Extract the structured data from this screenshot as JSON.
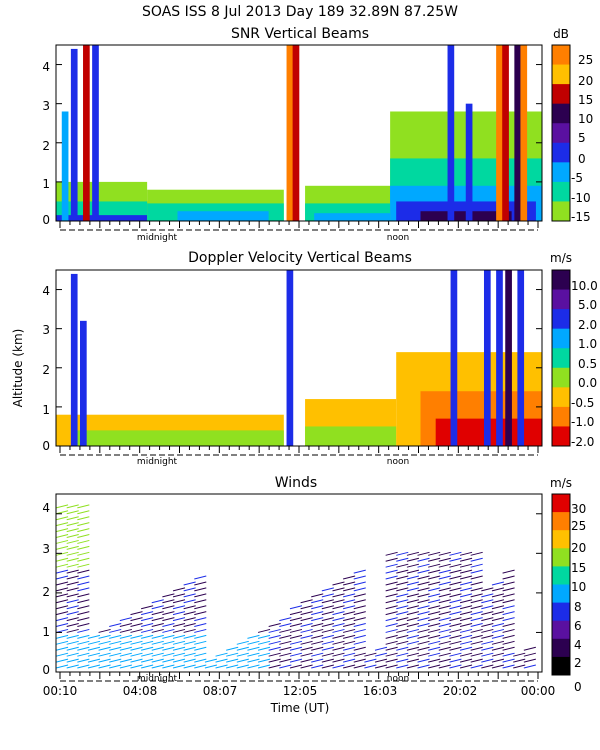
{
  "header": {
    "title": "SOAS ISS    8 Jul 2013 Day 189 32.89N   87.25W"
  },
  "chart_data": [
    {
      "type": "heatmap",
      "title": "SNR Vertical Beams",
      "colorbar_unit": "dB",
      "colorbar_ticks": [
        "25",
        "20",
        "15",
        "10",
        "5",
        "0",
        "-5",
        "-10",
        "-15"
      ],
      "colorbar_colors": [
        "#ff7f00",
        "#ffc000",
        "#c00000",
        "#2c0050",
        "#5a10a0",
        "#1c2ce8",
        "#00a8ff",
        "#00d8a0",
        "#90e020"
      ],
      "y_ticks": [
        "0",
        "1",
        "2",
        "3",
        "4"
      ],
      "ylim": [
        0,
        4.5
      ],
      "time_markers": [
        "midnight",
        "noon"
      ],
      "columns": [
        {
          "t": 0.3,
          "top": 2.8,
          "c": "#00a8ff"
        },
        {
          "t": 0.6,
          "top": 4.4,
          "c": "#1c2ce8"
        },
        {
          "t": 1.0,
          "top": 4.5,
          "c": "#c00000"
        },
        {
          "t": 1.3,
          "top": 4.5,
          "c": "#1c2ce8"
        },
        {
          "t": 7.7,
          "top": 4.5,
          "c": "#ff7f00"
        },
        {
          "t": 7.9,
          "top": 4.5,
          "c": "#c00000"
        },
        {
          "t": 13.0,
          "top": 4.5,
          "c": "#1c2ce8"
        },
        {
          "t": 13.6,
          "top": 3.0,
          "c": "#1c2ce8"
        },
        {
          "t": 14.6,
          "top": 4.5,
          "c": "#ff7f00"
        },
        {
          "t": 14.8,
          "top": 4.5,
          "c": "#c00000"
        },
        {
          "t": 15.2,
          "top": 4.5,
          "c": "#2c0050"
        },
        {
          "t": 15.4,
          "top": 4.5,
          "c": "#ff7f00"
        }
      ],
      "regions": [
        {
          "t0": 0.0,
          "t1": 3.0,
          "top": 1.0,
          "c": "#90e020"
        },
        {
          "t0": 0.0,
          "t1": 3.5,
          "top": 0.5,
          "c": "#00d8a0"
        },
        {
          "t0": 0.0,
          "t1": 4.5,
          "top": 0.15,
          "c": "#1c2ce8"
        },
        {
          "t0": 3.0,
          "t1": 7.5,
          "top": 0.8,
          "c": "#90e020"
        },
        {
          "t0": 3.0,
          "t1": 7.5,
          "top": 0.45,
          "c": "#00d8a0"
        },
        {
          "t0": 4.0,
          "t1": 7.0,
          "top": 0.25,
          "c": "#00a8ff"
        },
        {
          "t0": 8.2,
          "t1": 11.0,
          "top": 0.9,
          "c": "#90e020"
        },
        {
          "t0": 8.2,
          "t1": 11.0,
          "top": 0.45,
          "c": "#00d8a0"
        },
        {
          "t0": 8.5,
          "t1": 11.0,
          "top": 0.2,
          "c": "#00a8ff"
        },
        {
          "t0": 11.0,
          "t1": 16.0,
          "top": 2.8,
          "c": "#90e020"
        },
        {
          "t0": 11.0,
          "t1": 16.0,
          "top": 1.6,
          "c": "#00d8a0"
        },
        {
          "t0": 11.0,
          "t1": 16.0,
          "top": 0.9,
          "c": "#00a8ff"
        },
        {
          "t0": 11.2,
          "t1": 15.8,
          "top": 0.5,
          "c": "#1c2ce8"
        },
        {
          "t0": 12.0,
          "t1": 15.0,
          "top": 0.25,
          "c": "#2c0050"
        }
      ]
    },
    {
      "type": "heatmap",
      "title": "Doppler Velocity Vertical Beams",
      "colorbar_unit": "m/s",
      "colorbar_ticks": [
        "10.0",
        "5.0",
        "2.0",
        "1.0",
        "0.5",
        "0.0",
        "-0.5",
        "-1.0",
        "-2.0"
      ],
      "colorbar_colors": [
        "#2c0050",
        "#5a10a0",
        "#1c2ce8",
        "#00a8ff",
        "#00d8a0",
        "#90e020",
        "#ffc000",
        "#ff7f00",
        "#e00000"
      ],
      "y_ticks": [
        "0",
        "1",
        "2",
        "3",
        "4"
      ],
      "ylabel": "Altitude (km)",
      "ylim": [
        0,
        4.5
      ],
      "time_markers": [
        "midnight",
        "noon"
      ],
      "columns": [
        {
          "t": 0.6,
          "top": 4.4,
          "c": "#1c2ce8"
        },
        {
          "t": 0.9,
          "top": 3.2,
          "c": "#1c2ce8"
        },
        {
          "t": 7.7,
          "top": 4.5,
          "c": "#1c2ce8"
        },
        {
          "t": 13.1,
          "top": 4.5,
          "c": "#1c2ce8"
        },
        {
          "t": 14.2,
          "top": 4.5,
          "c": "#1c2ce8"
        },
        {
          "t": 14.6,
          "top": 4.5,
          "c": "#1c2ce8"
        },
        {
          "t": 14.9,
          "top": 4.5,
          "c": "#2c0050"
        },
        {
          "t": 15.3,
          "top": 4.5,
          "c": "#1c2ce8"
        }
      ],
      "regions": [
        {
          "t0": 0.0,
          "t1": 7.5,
          "top": 0.8,
          "c": "#ffc000"
        },
        {
          "t0": 0.5,
          "t1": 7.5,
          "top": 0.4,
          "c": "#90e020"
        },
        {
          "t0": 8.2,
          "t1": 11.2,
          "top": 1.2,
          "c": "#ffc000"
        },
        {
          "t0": 8.2,
          "t1": 11.2,
          "top": 0.5,
          "c": "#90e020"
        },
        {
          "t0": 11.2,
          "t1": 16.0,
          "top": 2.4,
          "c": "#ffc000"
        },
        {
          "t0": 12.0,
          "t1": 16.0,
          "top": 1.4,
          "c": "#ff7f00"
        },
        {
          "t0": 12.5,
          "t1": 16.0,
          "top": 0.7,
          "c": "#e00000"
        }
      ]
    },
    {
      "type": "scatter",
      "title": "Winds",
      "colorbar_unit": "m/s",
      "colorbar_ticks": [
        "30",
        "25",
        "20",
        "15",
        "10",
        "8",
        "6",
        "4",
        "2",
        "0"
      ],
      "colorbar_colors": [
        "#e00000",
        "#ff7f00",
        "#ffc000",
        "#90e020",
        "#00d8a0",
        "#00a8ff",
        "#1c2ce8",
        "#5a10a0",
        "#2c0050",
        "#000000"
      ],
      "y_ticks": [
        "0",
        "1",
        "2",
        "3",
        "4"
      ],
      "ylim": [
        0,
        4.5
      ],
      "xlabel": "Time (UT)",
      "x_ticks": [
        "00:10",
        "04:08",
        "08:07",
        "12:05",
        "16:03",
        "20:02",
        "00:00"
      ],
      "time_markers": [
        "midnight",
        "noon"
      ]
    }
  ]
}
